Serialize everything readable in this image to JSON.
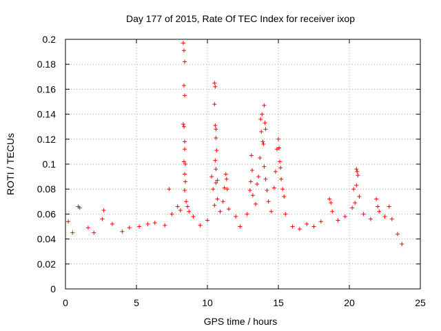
{
  "chart_data": {
    "type": "scatter",
    "title": "Day 177 of 2015, Rate Of TEC Index for receiver ixop",
    "xlabel": "GPS time / hours",
    "ylabel": "ROTI / TECUs",
    "xlim": [
      0,
      25
    ],
    "ylim": [
      0,
      0.2
    ],
    "x_ticks": [
      "0",
      "5",
      "10",
      "15",
      "20",
      "25"
    ],
    "y_ticks": [
      "0",
      "0.02",
      "0.04",
      "0.06",
      "0.08",
      "0.1",
      "0.12",
      "0.14",
      "0.16",
      "0.18",
      "0.2"
    ],
    "x_tick_values": [
      0,
      5,
      10,
      15,
      20,
      25
    ],
    "y_tick_values": [
      0,
      0.02,
      0.04,
      0.06,
      0.08,
      0.1,
      0.12,
      0.14,
      0.16,
      0.18,
      0.2
    ],
    "grid": true,
    "marker": "plus",
    "marker_color": "#ff0000",
    "series": [
      {
        "points": [
          [
            0.2,
            0.054
          ],
          [
            0.5,
            0.045
          ],
          [
            0.9,
            0.066
          ],
          [
            1.0,
            0.065
          ],
          [
            1.6,
            0.049
          ],
          [
            2.0,
            0.045
          ],
          [
            2.7,
            0.063
          ],
          [
            2.6,
            0.056
          ],
          [
            3.3,
            0.052
          ],
          [
            4.0,
            0.046
          ],
          [
            4.5,
            0.049
          ],
          [
            5.2,
            0.05
          ],
          [
            5.8,
            0.052
          ],
          [
            6.3,
            0.053
          ],
          [
            7.0,
            0.051
          ],
          [
            7.3,
            0.08
          ],
          [
            7.5,
            0.06
          ],
          [
            7.9,
            0.066
          ],
          [
            8.1,
            0.063
          ],
          [
            8.3,
            0.197
          ],
          [
            8.35,
            0.191
          ],
          [
            8.4,
            0.182
          ],
          [
            8.35,
            0.163
          ],
          [
            8.4,
            0.155
          ],
          [
            8.3,
            0.132
          ],
          [
            8.35,
            0.13
          ],
          [
            8.4,
            0.118
          ],
          [
            8.4,
            0.112
          ],
          [
            8.35,
            0.102
          ],
          [
            8.45,
            0.1
          ],
          [
            8.4,
            0.092
          ],
          [
            8.45,
            0.086
          ],
          [
            8.4,
            0.079
          ],
          [
            8.5,
            0.07
          ],
          [
            8.6,
            0.066
          ],
          [
            8.7,
            0.062
          ],
          [
            9.0,
            0.058
          ],
          [
            9.5,
            0.051
          ],
          [
            10.0,
            0.055
          ],
          [
            10.3,
            0.09
          ],
          [
            10.4,
            0.08
          ],
          [
            10.5,
            0.165
          ],
          [
            10.55,
            0.162
          ],
          [
            10.5,
            0.148
          ],
          [
            10.55,
            0.131
          ],
          [
            10.6,
            0.128
          ],
          [
            10.6,
            0.121
          ],
          [
            10.65,
            0.111
          ],
          [
            10.55,
            0.103
          ],
          [
            10.6,
            0.096
          ],
          [
            10.7,
            0.087
          ],
          [
            10.6,
            0.085
          ],
          [
            10.7,
            0.072
          ],
          [
            10.5,
            0.067
          ],
          [
            10.9,
            0.062
          ],
          [
            11.1,
            0.07
          ],
          [
            11.2,
            0.081
          ],
          [
            11.3,
            0.092
          ],
          [
            11.35,
            0.088
          ],
          [
            11.4,
            0.08
          ],
          [
            11.5,
            0.064
          ],
          [
            12.0,
            0.058
          ],
          [
            12.3,
            0.05
          ],
          [
            12.8,
            0.06
          ],
          [
            13.0,
            0.079
          ],
          [
            13.05,
            0.086
          ],
          [
            13.1,
            0.107
          ],
          [
            13.15,
            0.095
          ],
          [
            13.2,
            0.075
          ],
          [
            13.4,
            0.068
          ],
          [
            13.5,
            0.084
          ],
          [
            13.6,
            0.09
          ],
          [
            13.7,
            0.105
          ],
          [
            13.75,
            0.136
          ],
          [
            13.8,
            0.126
          ],
          [
            13.85,
            0.14
          ],
          [
            13.9,
            0.118
          ],
          [
            13.95,
            0.116
          ],
          [
            14.0,
            0.147
          ],
          [
            14.05,
            0.133
          ],
          [
            14.1,
            0.128
          ],
          [
            14.0,
            0.098
          ],
          [
            14.1,
            0.088
          ],
          [
            14.2,
            0.079
          ],
          [
            14.3,
            0.07
          ],
          [
            14.5,
            0.062
          ],
          [
            14.7,
            0.081
          ],
          [
            14.8,
            0.094
          ],
          [
            14.9,
            0.112
          ],
          [
            15.0,
            0.12
          ],
          [
            15.05,
            0.113
          ],
          [
            15.1,
            0.102
          ],
          [
            15.15,
            0.097
          ],
          [
            15.2,
            0.088
          ],
          [
            15.3,
            0.08
          ],
          [
            15.4,
            0.074
          ],
          [
            15.5,
            0.06
          ],
          [
            16.0,
            0.05
          ],
          [
            16.5,
            0.048
          ],
          [
            17.0,
            0.052
          ],
          [
            17.5,
            0.05
          ],
          [
            18.0,
            0.054
          ],
          [
            18.6,
            0.072
          ],
          [
            18.7,
            0.069
          ],
          [
            18.8,
            0.062
          ],
          [
            19.2,
            0.055
          ],
          [
            19.7,
            0.058
          ],
          [
            20.2,
            0.065
          ],
          [
            20.3,
            0.08
          ],
          [
            20.5,
            0.096
          ],
          [
            20.55,
            0.094
          ],
          [
            20.6,
            0.091
          ],
          [
            20.5,
            0.083
          ],
          [
            20.7,
            0.074
          ],
          [
            20.4,
            0.069
          ],
          [
            21.0,
            0.06
          ],
          [
            21.5,
            0.056
          ],
          [
            21.9,
            0.072
          ],
          [
            22.0,
            0.066
          ],
          [
            22.1,
            0.062
          ],
          [
            22.5,
            0.058
          ],
          [
            22.8,
            0.066
          ],
          [
            23.0,
            0.056
          ],
          [
            23.4,
            0.044
          ],
          [
            23.7,
            0.036
          ]
        ]
      }
    ]
  }
}
